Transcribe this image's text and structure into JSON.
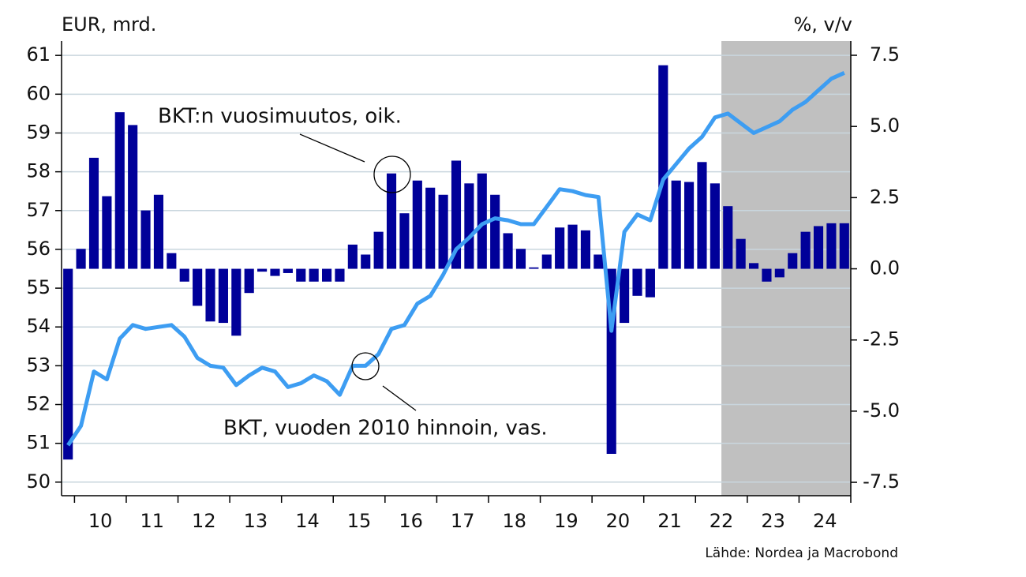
{
  "chart_data": {
    "type": "bar",
    "y_label": "EUR, mrd.",
    "y2_label": "%, v/v",
    "source": "Lähde: Nordea ja Macrobond",
    "categories": [
      null,
      null,
      "10",
      null,
      null,
      null,
      "11",
      null,
      null,
      null,
      "12",
      null,
      null,
      null,
      "13",
      null,
      null,
      null,
      "14",
      null,
      null,
      null,
      "15",
      null,
      null,
      null,
      "16",
      null,
      null,
      null,
      "17",
      null,
      null,
      null,
      "18",
      null,
      null,
      null,
      "19",
      null,
      null,
      null,
      "20",
      null,
      null,
      null,
      "21",
      null,
      null,
      null,
      "22",
      null,
      null,
      null,
      "23",
      null,
      null,
      null,
      "24",
      null,
      null
    ],
    "series": [
      {
        "name": "BKT:n vuosimuutos, oik.",
        "type": "bar",
        "axis": "y2",
        "color": "#000099",
        "values": [
          -6.7,
          0.7,
          3.9,
          2.55,
          5.5,
          5.05,
          2.05,
          2.6,
          0.55,
          -0.45,
          -1.3,
          -1.85,
          -1.9,
          -2.35,
          -0.85,
          -0.1,
          -0.25,
          -0.15,
          -0.45,
          -0.45,
          -0.45,
          -0.45,
          0.85,
          0.5,
          1.3,
          3.35,
          1.95,
          3.1,
          2.85,
          2.6,
          3.8,
          3.0,
          3.35,
          2.6,
          1.25,
          0.7,
          0.05,
          0.5,
          1.45,
          1.55,
          1.35,
          0.5,
          -6.5,
          -1.9,
          -0.95,
          -1.0,
          7.15,
          3.1,
          3.05,
          3.75,
          3.0,
          2.2,
          1.05,
          0.2,
          -0.45,
          -0.3,
          0.55,
          1.3,
          1.5,
          1.6,
          1.6
        ]
      },
      {
        "name": "BKT, vuoden 2010 hinnoin, vas.",
        "type": "line",
        "axis": "y",
        "color": "#3d9df2",
        "values": [
          50.95,
          51.45,
          52.85,
          52.65,
          53.7,
          54.05,
          53.95,
          54.0,
          54.05,
          53.75,
          53.2,
          53.0,
          52.95,
          52.5,
          52.75,
          52.95,
          52.85,
          52.45,
          52.55,
          52.75,
          52.6,
          52.25,
          53.0,
          53.0,
          53.3,
          53.95,
          54.05,
          54.6,
          54.8,
          55.35,
          56.0,
          56.3,
          56.65,
          56.8,
          56.75,
          56.65,
          56.65,
          57.1,
          57.55,
          57.5,
          57.4,
          57.35,
          53.9,
          56.45,
          56.9,
          56.75,
          57.8,
          58.2,
          58.6,
          58.9,
          59.4,
          59.5,
          59.25,
          59.0,
          59.15,
          59.3,
          59.6,
          59.8,
          60.1,
          60.4,
          60.55
        ]
      }
    ],
    "ylim": [
      49.65,
      61.37
    ],
    "yticks": [
      50,
      51,
      52,
      53,
      54,
      55,
      56,
      57,
      58,
      59,
      60,
      61
    ],
    "y2lim": [
      -7.97,
      8.0
    ],
    "y2ticks": [
      -7.5,
      {
        "value": -5,
        "label": "-5.0"
      },
      -2.5,
      {
        "value": 0,
        "label": "0.0"
      },
      2.5,
      {
        "value": 5,
        "label": "5.0"
      },
      7.5
    ],
    "grid": true
  }
}
